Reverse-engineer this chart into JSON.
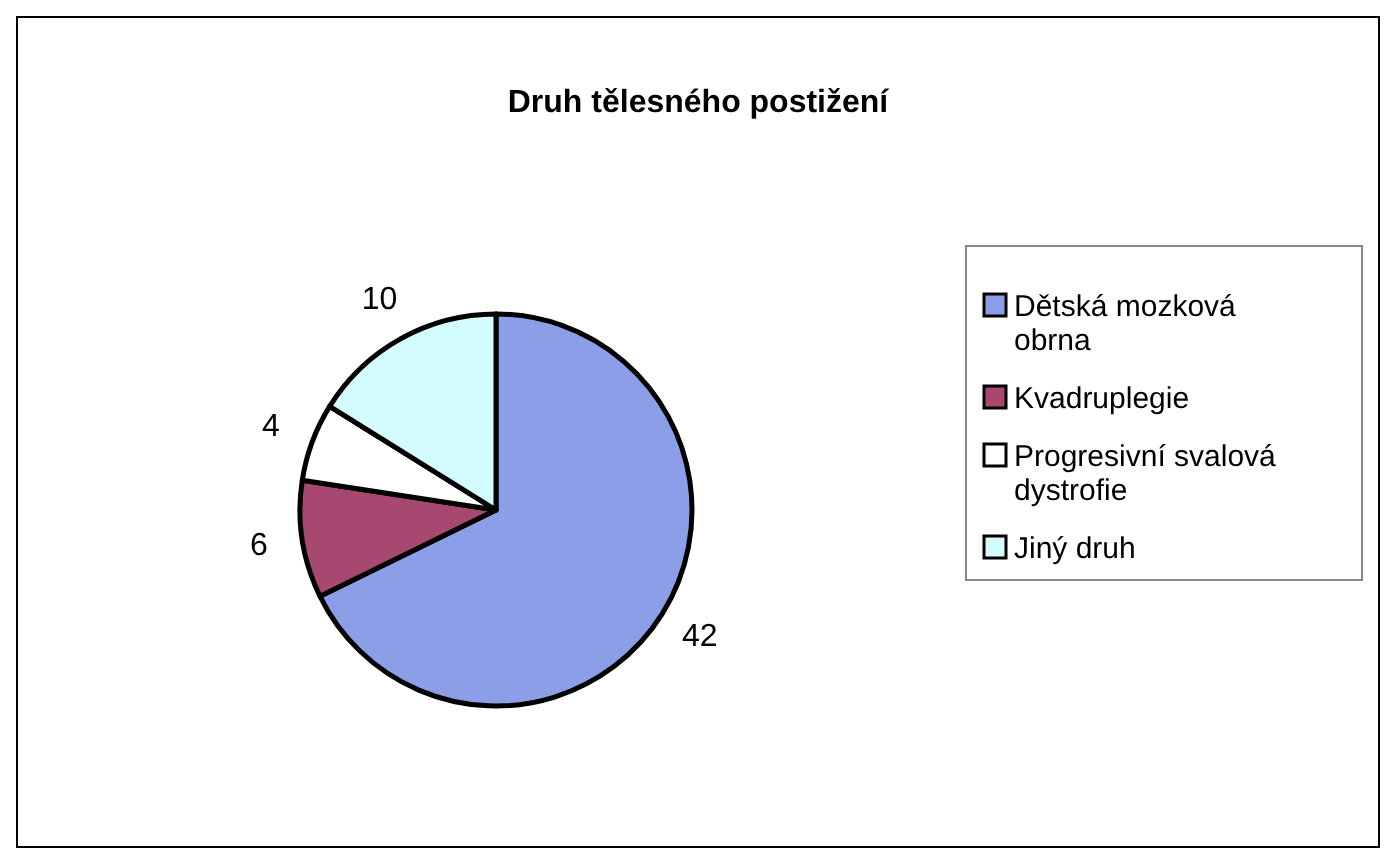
{
  "chart_data": {
    "type": "pie",
    "title": "Druh tělesného postižení",
    "categories": [
      "Dětská mozková obrna",
      "Kvadruplegie",
      "Progresivní svalová dystrofie",
      "Jiný druh"
    ],
    "values": [
      42,
      6,
      4,
      10
    ],
    "colors": [
      "#8c9ee8",
      "#a6486f",
      "#ffffff",
      "#d4fbfd"
    ],
    "data_labels": true,
    "legend": "right"
  }
}
